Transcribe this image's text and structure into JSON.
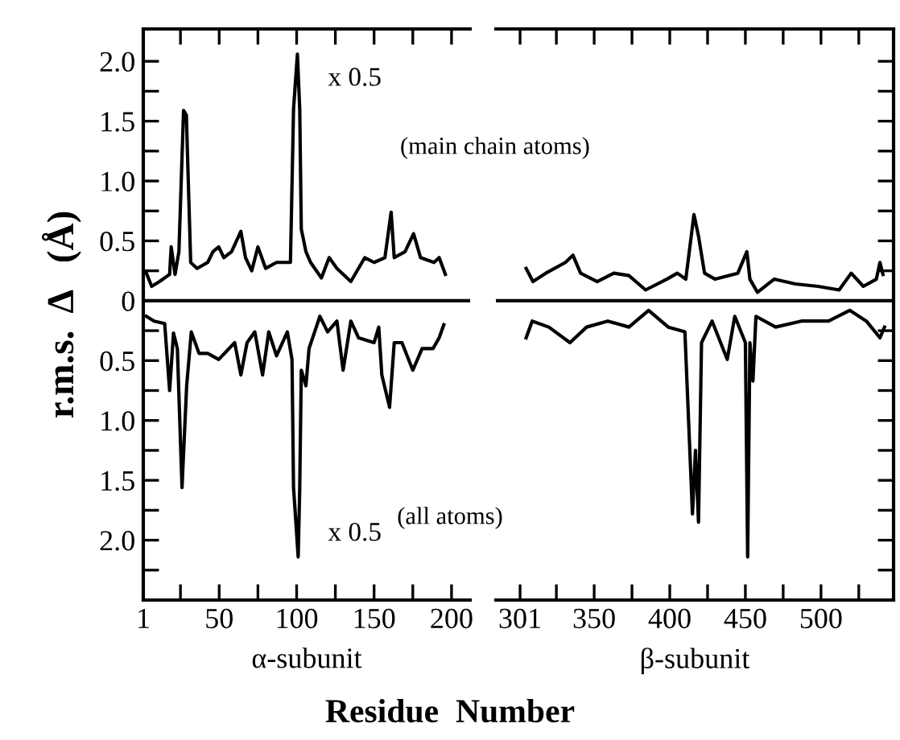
{
  "chart_data": [
    {
      "type": "line",
      "xlabel": "α-subunit",
      "ylabel": "r.m.s.  Δ   (Å)",
      "xlim": [
        1,
        212
      ],
      "ylim": [
        -2.5,
        2.27
      ],
      "xticks": [
        {
          "value": 1,
          "label": "1"
        },
        {
          "value": 25,
          "label": null
        },
        50,
        {
          "value": 75,
          "label": null
        },
        100,
        {
          "value": 125,
          "label": null
        },
        150,
        {
          "value": 175,
          "label": null
        },
        200
      ],
      "yticks": [
        {
          "value": 2.0,
          "label": "2.0"
        },
        {
          "value": 1.75,
          "label": null
        },
        {
          "value": 1.5,
          "label": "1.5"
        },
        {
          "value": 1.25,
          "label": null
        },
        {
          "value": 1.0,
          "label": "1.0"
        },
        {
          "value": 0.75,
          "label": null
        },
        {
          "value": 0.5,
          "label": "0.5"
        },
        {
          "value": 0.25,
          "label": null
        },
        0,
        {
          "value": -0.25,
          "label": null
        },
        {
          "value": -0.5,
          "label": "0.5"
        },
        {
          "value": -0.75,
          "label": null
        },
        {
          "value": -1.0,
          "label": "1.0"
        },
        {
          "value": -1.25,
          "label": null
        },
        {
          "value": -1.5,
          "label": "1.5"
        },
        {
          "value": -1.75,
          "label": null
        },
        {
          "value": -2.0,
          "label": "2.0"
        },
        {
          "value": -2.25,
          "label": null
        }
      ],
      "ref_lines": [
        {
          "axis": "y",
          "value": 0,
          "color": "#000000"
        }
      ],
      "grid": false,
      "series": [
        {
          "color": "#000000",
          "x": [
            3,
            6.4,
            11.5,
            18,
            19,
            21.5,
            24,
            27,
            28.8,
            31.6,
            35.7,
            42.6,
            46,
            49.7,
            53,
            58,
            64,
            67,
            71,
            75,
            80,
            87,
            96,
            98,
            100.5,
            102,
            103,
            106,
            109,
            116,
            121,
            126,
            135,
            144,
            150,
            157,
            161,
            163,
            170,
            175.5,
            180,
            188.7,
            192,
            196
          ],
          "values": [
            0.23,
            0.12,
            0.16,
            0.22,
            0.45,
            0.22,
            0.41,
            1.59,
            1.55,
            0.32,
            0.27,
            0.32,
            0.41,
            0.45,
            0.36,
            0.41,
            0.58,
            0.36,
            0.25,
            0.45,
            0.27,
            0.32,
            0.32,
            1.6,
            2.06,
            1.6,
            0.6,
            0.41,
            0.32,
            0.19,
            0.36,
            0.27,
            0.16,
            0.36,
            0.32,
            0.36,
            0.74,
            0.36,
            0.41,
            0.56,
            0.36,
            0.32,
            0.36,
            0.22
          ]
        },
        {
          "color": "#000000",
          "x": [
            3,
            8,
            14.8,
            18,
            20.5,
            23,
            26,
            29,
            32,
            37,
            42.6,
            49.7,
            60,
            64,
            68,
            73,
            78,
            82,
            87,
            94,
            97,
            98,
            101,
            102,
            103,
            106,
            108,
            115,
            120,
            126,
            130,
            135,
            140,
            150,
            153,
            155,
            160,
            163,
            168,
            175,
            181,
            188,
            192,
            195
          ],
          "values": [
            -0.13,
            -0.17,
            -0.19,
            -0.75,
            -0.27,
            -0.4,
            -1.56,
            -0.71,
            -0.26,
            -0.44,
            -0.44,
            -0.49,
            -0.35,
            -0.62,
            -0.35,
            -0.26,
            -0.62,
            -0.26,
            -0.46,
            -0.26,
            -0.49,
            -1.56,
            -2.14,
            -1.56,
            -0.58,
            -0.71,
            -0.4,
            -0.13,
            -0.26,
            -0.17,
            -0.58,
            -0.17,
            -0.31,
            -0.35,
            -0.22,
            -0.62,
            -0.89,
            -0.35,
            -0.35,
            -0.58,
            -0.4,
            -0.4,
            -0.31,
            -0.2
          ]
        }
      ],
      "annotations": [
        {
          "text": "x 0.5",
          "x": 100,
          "y": 1.85
        },
        {
          "text": "x 0.5",
          "x": 100,
          "y": -1.95
        },
        "Residue  Number"
      ]
    },
    {
      "type": "line",
      "xlabel": "β-subunit",
      "xlim": [
        285,
        548
      ],
      "ylim": [
        -2.5,
        2.27
      ],
      "tick_labels": "x",
      "xticks": [
        301,
        {
          "value": 325,
          "label": null
        },
        350,
        {
          "value": 375,
          "label": null
        },
        400,
        {
          "value": 425,
          "label": null
        },
        450,
        {
          "value": 475,
          "label": null
        },
        500,
        {
          "value": 525,
          "label": null
        }
      ],
      "yticks": [
        {
          "value": 2.0,
          "label": null
        },
        {
          "value": 1.75,
          "label": null
        },
        {
          "value": 1.5,
          "label": null
        },
        {
          "value": 1.25,
          "label": null
        },
        {
          "value": 1.0,
          "label": null
        },
        {
          "value": 0.75,
          "label": null
        },
        {
          "value": 0.5,
          "label": null
        },
        {
          "value": 0.25,
          "label": null
        },
        {
          "value": -0.25,
          "label": null
        },
        {
          "value": -0.5,
          "label": null
        },
        {
          "value": -0.75,
          "label": null
        },
        {
          "value": -1.0,
          "label": null
        },
        {
          "value": -1.25,
          "label": null
        },
        {
          "value": -1.5,
          "label": null
        },
        {
          "value": -1.75,
          "label": null
        },
        {
          "value": -2.0,
          "label": null
        },
        {
          "value": -2.25,
          "label": null
        }
      ],
      "ref_lines": [
        {
          "axis": "y",
          "value": 0,
          "color": "#000000"
        }
      ],
      "grid": false,
      "series": [
        {
          "color": "#000000",
          "x": [
            305,
            309.5,
            318,
            331,
            336,
            341,
            352,
            363,
            373,
            384,
            398,
            405,
            410.6,
            416,
            419,
            423,
            430,
            445,
            451,
            453,
            458,
            469,
            483,
            498,
            512,
            520,
            528,
            536.6,
            539,
            541
          ],
          "values": [
            0.27,
            0.16,
            0.23,
            0.32,
            0.38,
            0.23,
            0.16,
            0.23,
            0.21,
            0.09,
            0.18,
            0.23,
            0.18,
            0.72,
            0.54,
            0.23,
            0.18,
            0.23,
            0.41,
            0.18,
            0.07,
            0.18,
            0.14,
            0.12,
            0.09,
            0.23,
            0.12,
            0.18,
            0.32,
            0.22
          ]
        },
        {
          "color": "#000000",
          "x": [
            305,
            309,
            320,
            334,
            345,
            359,
            373,
            386,
            399,
            410,
            415,
            417,
            419,
            421,
            428,
            438,
            443,
            450,
            451.5,
            453,
            455,
            457,
            470,
            487,
            505,
            519,
            530,
            539,
            542
          ],
          "values": [
            -0.31,
            -0.17,
            -0.22,
            -0.35,
            -0.22,
            -0.17,
            -0.22,
            -0.08,
            -0.22,
            -0.26,
            -1.78,
            -1.25,
            -1.85,
            -0.35,
            -0.17,
            -0.49,
            -0.13,
            -0.35,
            -2.14,
            -0.35,
            -0.67,
            -0.13,
            -0.22,
            -0.17,
            -0.17,
            -0.08,
            -0.17,
            -0.31,
            -0.22
          ]
        }
      ],
      "annotations": [
        "(main chain atoms)",
        "(all atoms)"
      ]
    }
  ]
}
